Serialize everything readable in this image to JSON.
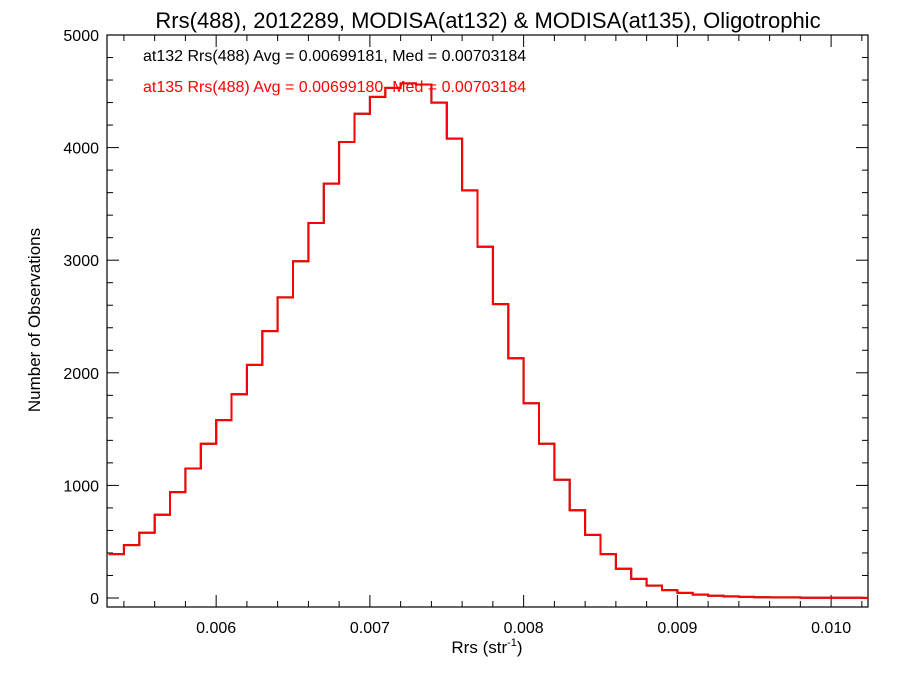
{
  "chart_data": {
    "type": "line",
    "title": "Rrs(488), 2012289, MODISA(at132) & MODISA(at135), Oligotrophic",
    "xlabel_main": "Rrs (str",
    "xlabel_sup": "-1",
    "xlabel_close": ")",
    "ylabel": "Number of Observations",
    "xlim": [
      0.00529,
      0.01024
    ],
    "ylim": [
      -80,
      5000
    ],
    "x_ticks": [
      {
        "value": 0.006,
        "label": "0.006"
      },
      {
        "value": 0.007,
        "label": "0.007"
      },
      {
        "value": 0.008,
        "label": "0.008"
      },
      {
        "value": 0.009,
        "label": "0.009"
      },
      {
        "value": 0.01,
        "label": "0.010"
      }
    ],
    "y_ticks": [
      {
        "value": 0,
        "label": "0"
      },
      {
        "value": 1000,
        "label": "1000"
      },
      {
        "value": 2000,
        "label": "2000"
      },
      {
        "value": 3000,
        "label": "3000"
      },
      {
        "value": 4000,
        "label": "4000"
      },
      {
        "value": 5000,
        "label": "5000"
      }
    ],
    "annotations": [
      {
        "text": "at132 Rrs(488) Avg = 0.00699181, Med = 0.00703184",
        "color": "#000000"
      },
      {
        "text": "at135 Rrs(488) Avg = 0.00699180, Med = 0.00703184",
        "color": "#ff0000"
      }
    ],
    "series": [
      {
        "id": "at132",
        "color": "#000000",
        "step": true,
        "x": [
          0.0053,
          0.0054,
          0.0055,
          0.0056,
          0.0057,
          0.0058,
          0.0059,
          0.006,
          0.0061,
          0.0062,
          0.0063,
          0.0064,
          0.0065,
          0.0066,
          0.0067,
          0.0068,
          0.0069,
          0.007,
          0.0071,
          0.0072,
          0.0073,
          0.0074,
          0.0075,
          0.0076,
          0.0077,
          0.0078,
          0.0079,
          0.008,
          0.0081,
          0.0082,
          0.0083,
          0.0084,
          0.0085,
          0.0086,
          0.0087,
          0.0088,
          0.0089,
          0.009,
          0.0091,
          0.0092,
          0.0093,
          0.0094,
          0.0095,
          0.0096,
          0.0098,
          0.01,
          0.0102
        ],
        "y": [
          390,
          470,
          580,
          740,
          940,
          1150,
          1370,
          1580,
          1810,
          2070,
          2370,
          2670,
          2990,
          3330,
          3680,
          4050,
          4300,
          4450,
          4530,
          4570,
          4560,
          4400,
          4080,
          3620,
          3120,
          2610,
          2130,
          1730,
          1370,
          1050,
          780,
          560,
          390,
          260,
          170,
          110,
          70,
          45,
          30,
          20,
          14,
          10,
          7,
          5,
          3,
          2,
          1
        ]
      },
      {
        "id": "at135",
        "color": "#ff0000",
        "step": true,
        "x": [
          0.0053,
          0.0054,
          0.0055,
          0.0056,
          0.0057,
          0.0058,
          0.0059,
          0.006,
          0.0061,
          0.0062,
          0.0063,
          0.0064,
          0.0065,
          0.0066,
          0.0067,
          0.0068,
          0.0069,
          0.007,
          0.0071,
          0.0072,
          0.0073,
          0.0074,
          0.0075,
          0.0076,
          0.0077,
          0.0078,
          0.0079,
          0.008,
          0.0081,
          0.0082,
          0.0083,
          0.0084,
          0.0085,
          0.0086,
          0.0087,
          0.0088,
          0.0089,
          0.009,
          0.0091,
          0.0092,
          0.0093,
          0.0094,
          0.0095,
          0.0096,
          0.0098,
          0.01,
          0.0102
        ],
        "y": [
          390,
          470,
          580,
          740,
          940,
          1150,
          1370,
          1580,
          1810,
          2070,
          2370,
          2670,
          2990,
          3330,
          3680,
          4050,
          4300,
          4450,
          4530,
          4570,
          4560,
          4400,
          4080,
          3620,
          3120,
          2610,
          2130,
          1730,
          1370,
          1050,
          780,
          560,
          390,
          260,
          170,
          110,
          70,
          45,
          30,
          20,
          14,
          10,
          7,
          5,
          3,
          2,
          1
        ]
      }
    ]
  }
}
